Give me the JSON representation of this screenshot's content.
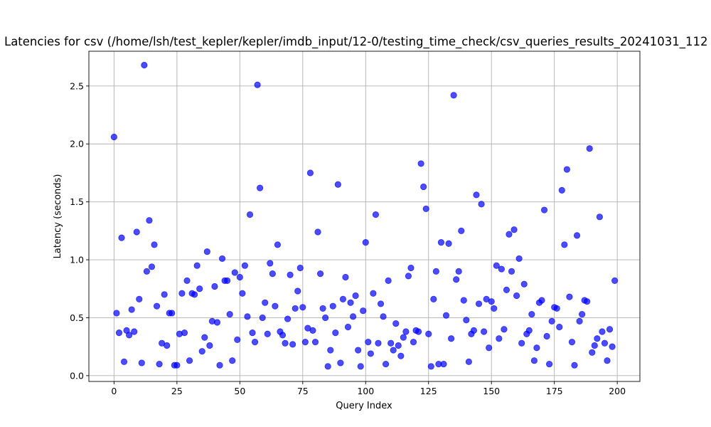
{
  "chart_data": {
    "type": "scatter",
    "title": "Latencies for csv (/home/lsh/test_kepler/kepler/imdb_input/12-0/testing_time_check/csv_queries_results_20241031_112",
    "xlabel": "Query Index",
    "ylabel": "Latency (seconds)",
    "xlim": [
      -10,
      209
    ],
    "ylim": [
      -0.05,
      2.8
    ],
    "xticks": [
      0,
      25,
      50,
      75,
      100,
      125,
      150,
      175,
      200
    ],
    "yticks": [
      0.0,
      0.5,
      1.0,
      1.5,
      2.0,
      2.5
    ],
    "ytick_labels": [
      "0.0",
      "0.5",
      "1.0",
      "1.5",
      "2.0",
      "2.5"
    ],
    "grid": true,
    "legend": "none",
    "marker_color": "#0000ff",
    "marker_alpha": 0.7,
    "series": [
      {
        "x": [
          0,
          1,
          2,
          3,
          4,
          5,
          6,
          7,
          8,
          9,
          10,
          11,
          12,
          13,
          14,
          15,
          16,
          17,
          18,
          19,
          20,
          21,
          22,
          23,
          24,
          25,
          26,
          27,
          28,
          29,
          30,
          31,
          32,
          33,
          34,
          35,
          36,
          37,
          38,
          39,
          40,
          41,
          42,
          43,
          44,
          45,
          46,
          47,
          48,
          49,
          50,
          51,
          52,
          53,
          54,
          55,
          56,
          57,
          58,
          59,
          60,
          61,
          62,
          63,
          64,
          65,
          66,
          67,
          68,
          69,
          70,
          71,
          72,
          73,
          74,
          75,
          76,
          77,
          78,
          79,
          80,
          81,
          82,
          83,
          84,
          85,
          86,
          87,
          88,
          89,
          90,
          91,
          92,
          93,
          94,
          95,
          96,
          97,
          98,
          99,
          100,
          101,
          102,
          103,
          104,
          105,
          106,
          107,
          108,
          109,
          110,
          111,
          112,
          113,
          114,
          115,
          116,
          117,
          118,
          119,
          120,
          121,
          122,
          123,
          124,
          125,
          126,
          127,
          128,
          129,
          130,
          131,
          132,
          133,
          134,
          135,
          136,
          137,
          138,
          139,
          140,
          141,
          142,
          143,
          144,
          145,
          146,
          147,
          148,
          149,
          150,
          151,
          152,
          153,
          154,
          155,
          156,
          157,
          158,
          159,
          160,
          161,
          162,
          163,
          164,
          165,
          166,
          167,
          168,
          169,
          170,
          171,
          172,
          173,
          174,
          175,
          176,
          177,
          178,
          179,
          180,
          181,
          182,
          183,
          184,
          185,
          186,
          187,
          188,
          189,
          190,
          191,
          192,
          193,
          194,
          195,
          196,
          197,
          198,
          199
        ],
        "y": [
          2.06,
          0.54,
          0.37,
          1.19,
          0.12,
          0.39,
          0.35,
          0.57,
          0.38,
          1.24,
          0.66,
          0.11,
          2.68,
          0.9,
          1.34,
          0.94,
          1.13,
          0.6,
          0.1,
          0.28,
          0.7,
          0.26,
          0.54,
          0.54,
          0.09,
          0.09,
          0.36,
          0.71,
          0.37,
          0.82,
          0.13,
          0.71,
          0.7,
          0.95,
          0.75,
          0.21,
          0.33,
          1.07,
          0.26,
          0.47,
          0.77,
          0.46,
          0.09,
          1.01,
          0.82,
          0.82,
          0.53,
          0.13,
          0.89,
          0.31,
          0.85,
          0.71,
          0.95,
          0.51,
          1.39,
          0.37,
          0.29,
          2.51,
          1.62,
          0.5,
          0.63,
          0.36,
          0.97,
          0.88,
          0.6,
          1.13,
          0.38,
          0.35,
          0.28,
          0.49,
          0.87,
          0.27,
          0.58,
          0.73,
          0.93,
          0.59,
          0.29,
          0.41,
          1.75,
          0.39,
          0.29,
          1.24,
          0.88,
          0.58,
          0.5,
          0.08,
          0.22,
          0.6,
          0.37,
          1.65,
          0.11,
          0.66,
          0.85,
          0.42,
          0.63,
          0.51,
          0.69,
          0.22,
          0.08,
          0.56,
          1.15,
          0.29,
          0.19,
          0.71,
          1.39,
          0.28,
          0.62,
          0.51,
          0.1,
          0.82,
          0.28,
          0.22,
          0.45,
          0.26,
          0.17,
          0.33,
          0.38,
          0.86,
          0.93,
          0.29,
          0.39,
          0.38,
          1.83,
          1.63,
          1.44,
          0.36,
          0.08,
          0.66,
          0.9,
          0.1,
          1.15,
          0.1,
          0.52,
          1.14,
          0.32,
          2.42,
          0.83,
          0.9,
          1.25,
          0.65,
          0.48,
          0.12,
          0.36,
          0.39,
          1.56,
          0.62,
          1.48,
          0.38,
          0.66,
          0.24,
          0.64,
          0.58,
          0.95,
          0.32,
          0.92,
          0.4,
          0.74,
          1.22,
          0.9,
          1.26,
          0.69,
          1.01,
          0.28,
          0.79,
          0.36,
          0.39,
          0.53,
          0.13,
          0.24,
          0.63,
          0.65,
          1.43,
          0.34,
          0.1,
          0.47,
          0.59,
          0.58,
          0.42,
          1.6,
          1.13,
          1.78,
          0.68,
          0.29,
          0.09,
          1.21,
          0.47,
          0.53,
          0.65,
          0.64,
          1.96,
          0.2,
          0.26,
          0.32,
          1.37,
          0.38,
          0.28,
          0.13,
          0.4,
          0.25,
          0.82
        ]
      }
    ]
  }
}
